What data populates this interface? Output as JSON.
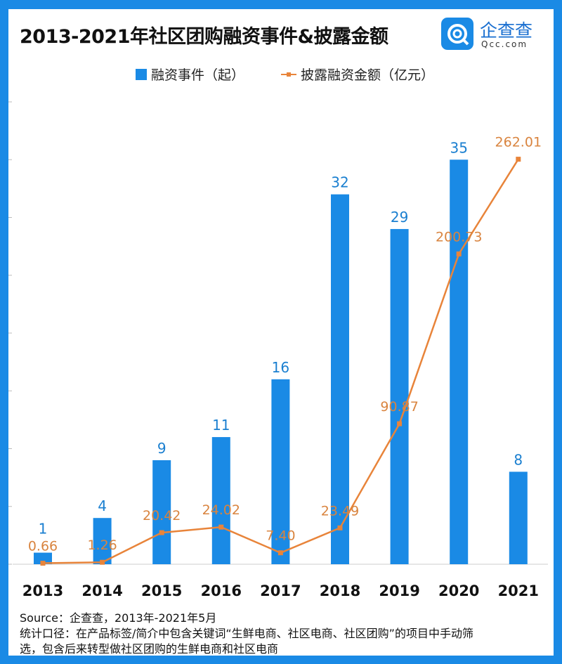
{
  "title": "2013-2021年社区团购融资事件&披露金额",
  "logo": {
    "name": "企查查",
    "sub": "Qcc.com"
  },
  "colors": {
    "bar": "#1a8ae5",
    "line": "#e8843a",
    "frame": "#1a8ae5"
  },
  "chart_data": {
    "type": "bar+line",
    "categories": [
      "2013",
      "2014",
      "2015",
      "2016",
      "2017",
      "2018",
      "2019",
      "2020",
      "2021"
    ],
    "series": [
      {
        "name": "融资事件（起）",
        "type": "bar",
        "axis": "left",
        "values": [
          1,
          4,
          9,
          11,
          16,
          32,
          29,
          35,
          8
        ],
        "labels": [
          "1",
          "4",
          "9",
          "11",
          "16",
          "32",
          "29",
          "35",
          "8"
        ]
      },
      {
        "name": "披露融资金额（亿元）",
        "type": "line",
        "axis": "right",
        "values": [
          0.66,
          1.26,
          20.42,
          24.02,
          7.4,
          23.49,
          90.87,
          200.73,
          262.01
        ],
        "labels": [
          "0.66",
          "1.26",
          "20.42",
          "24.02",
          "7.40",
          "23.49",
          "90.87",
          "200.73",
          "262.01"
        ]
      }
    ],
    "ylim_left": [
      0,
      40
    ],
    "legend": "top"
  },
  "footer": {
    "source": "Source：企查查，2013年-2021年5月",
    "note1": "统计口径：在产品标签/简介中包含关键词“生鲜电商、社区电商、社区团购”的项目中手动筛",
    "note2": "选，包含后来转型做社区团购的生鲜电商和社区电商"
  }
}
